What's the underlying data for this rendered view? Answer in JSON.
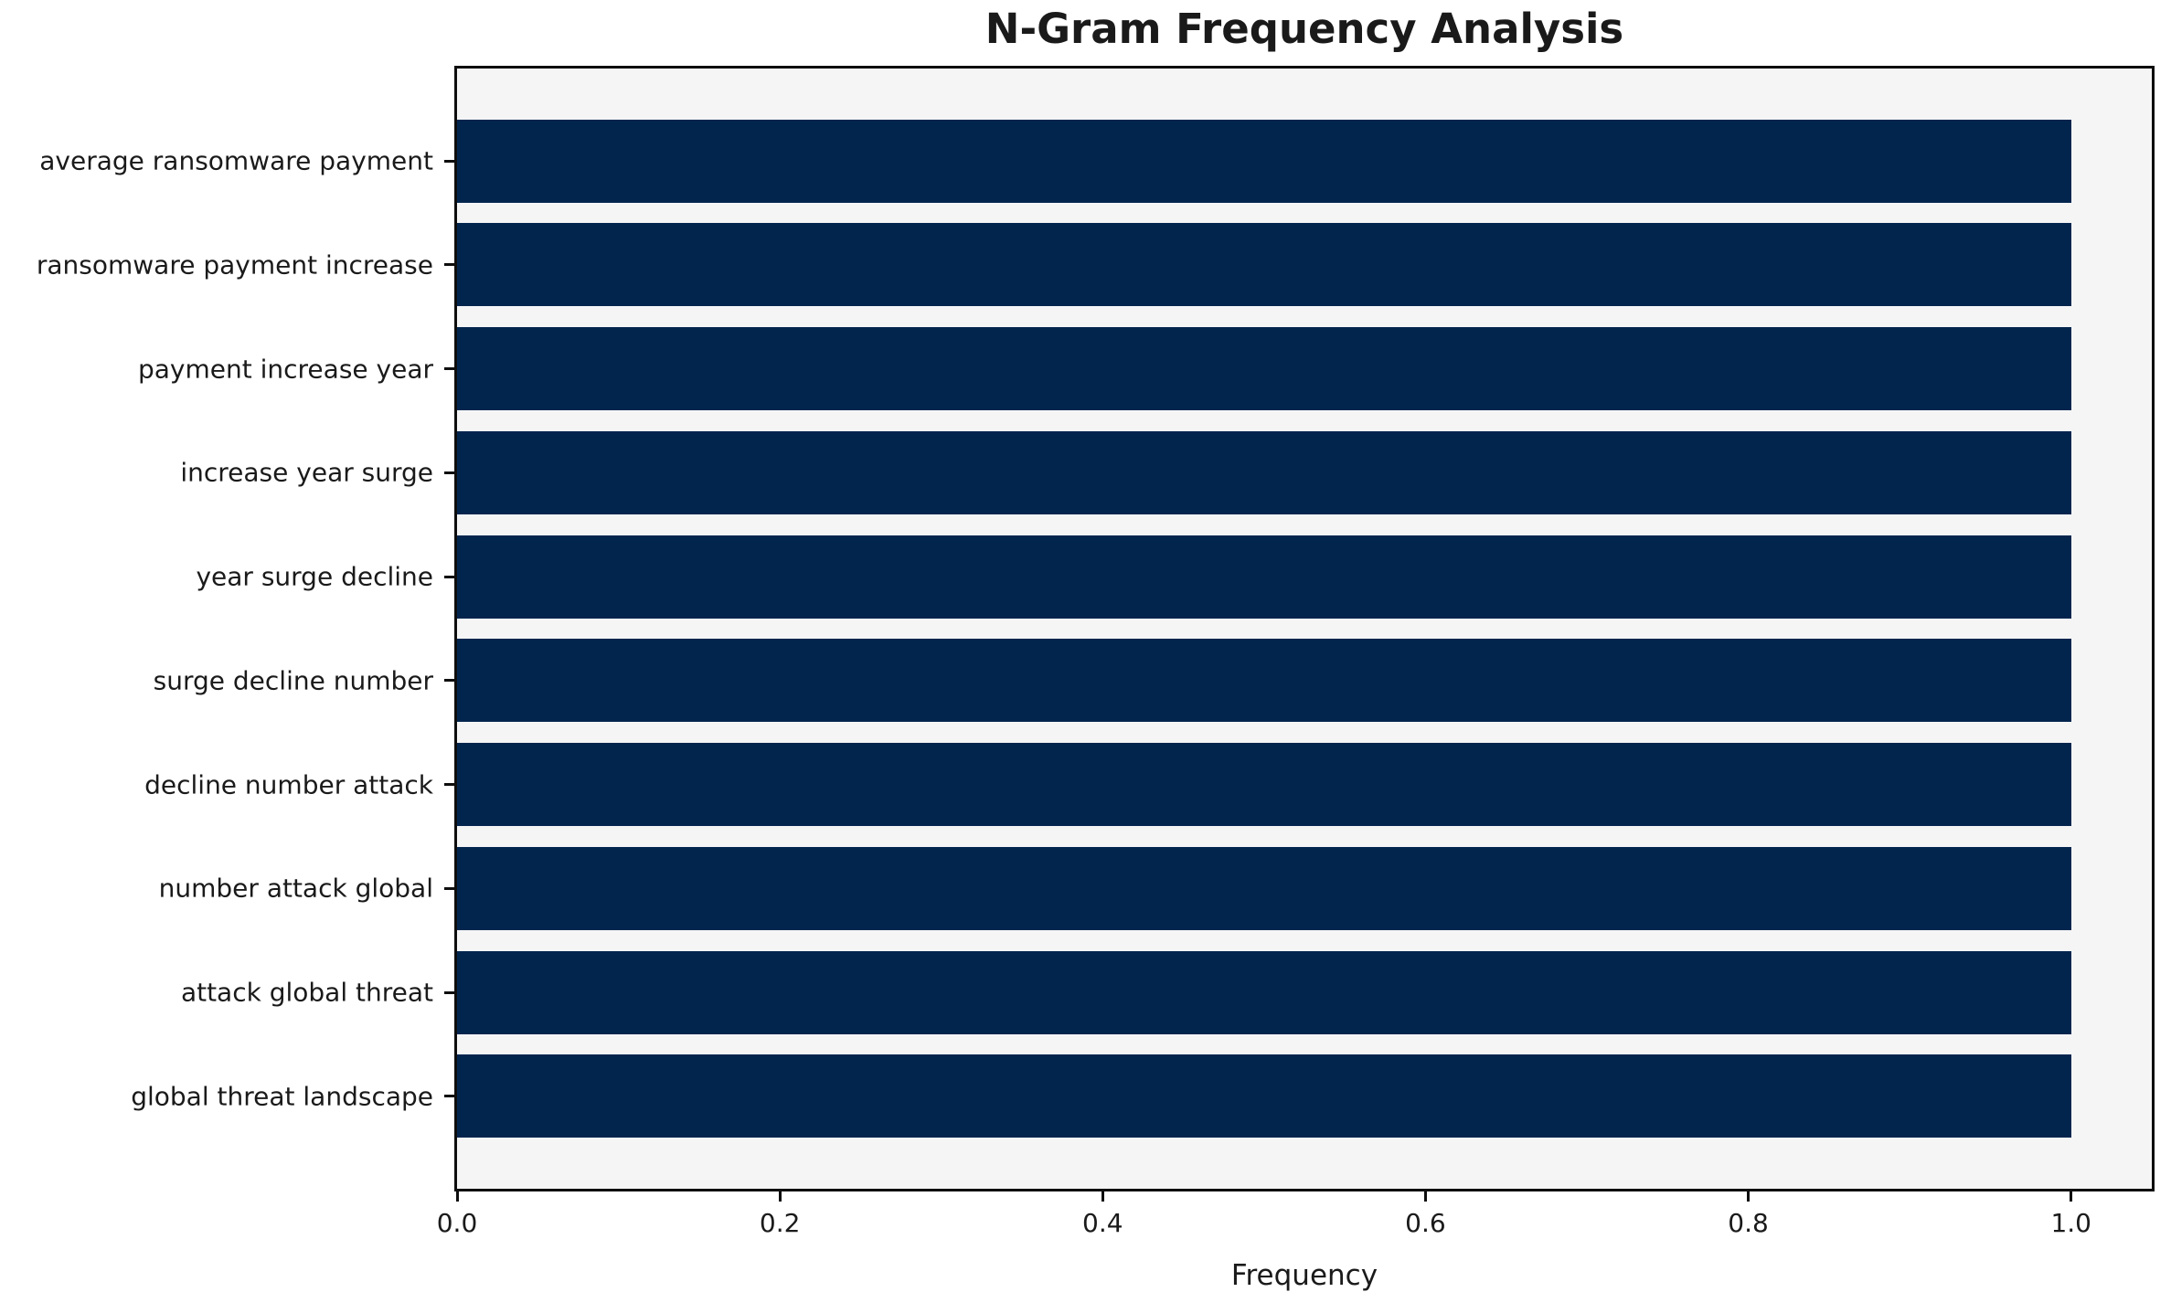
{
  "chart_data": {
    "type": "bar",
    "orientation": "horizontal",
    "title": "N-Gram Frequency Analysis",
    "xlabel": "Frequency",
    "ylabel": "",
    "categories": [
      "average ransomware payment",
      "ransomware payment increase",
      "payment increase year",
      "increase year surge",
      "year surge decline",
      "surge decline number",
      "decline number attack",
      "number attack global",
      "attack global threat",
      "global threat landscape"
    ],
    "values": [
      1.0,
      1.0,
      1.0,
      1.0,
      1.0,
      1.0,
      1.0,
      1.0,
      1.0,
      1.0
    ],
    "x_ticks": [
      {
        "value": 0.0,
        "label": "0.0"
      },
      {
        "value": 0.2,
        "label": "0.2"
      },
      {
        "value": 0.4,
        "label": "0.4"
      },
      {
        "value": 0.6,
        "label": "0.6"
      },
      {
        "value": 0.8,
        "label": "0.8"
      },
      {
        "value": 1.0,
        "label": "1.0"
      }
    ],
    "xlim": [
      0,
      1.05
    ],
    "grid": false,
    "legend": null,
    "bar_color": "#02254e",
    "plot_bg_color": "#f5f5f6",
    "figure_bg_color": "#ffffff",
    "axis_color": "#0e0e0e"
  }
}
